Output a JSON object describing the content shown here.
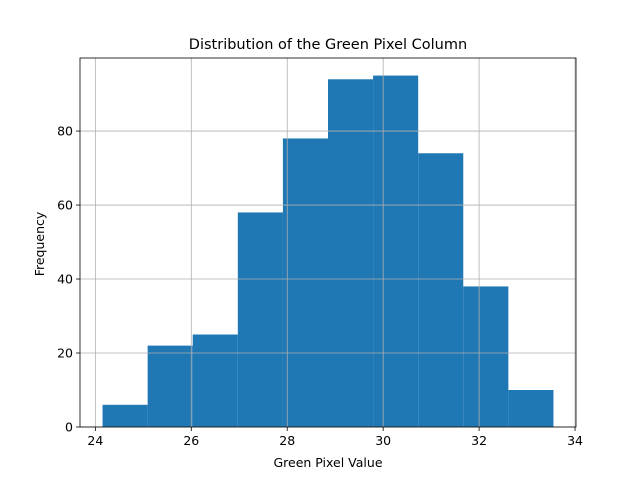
{
  "chart_data": {
    "type": "bar",
    "title": "Distribution of the Green Pixel Column",
    "xlabel": "Green Pixel Value",
    "ylabel": "Frequency",
    "bin_edges": [
      24.15,
      25.09,
      26.03,
      26.97,
      27.91,
      28.85,
      29.79,
      30.73,
      31.67,
      32.61,
      33.55
    ],
    "values": [
      6,
      22,
      25,
      58,
      78,
      94,
      95,
      74,
      38,
      10
    ],
    "xlim": [
      23.68,
      34.02
    ],
    "ylim": [
      0,
      99.75
    ],
    "xticks": [
      24,
      26,
      28,
      30,
      32,
      34
    ],
    "yticks": [
      0,
      20,
      40,
      60,
      80
    ],
    "grid": true,
    "bar_color": "#1f77b4",
    "grid_color": "#b0b0b0"
  }
}
